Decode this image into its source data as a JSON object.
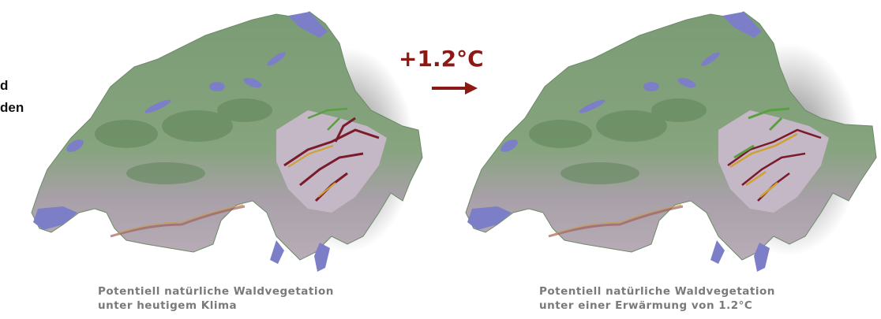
{
  "side_text": {
    "line1": "d",
    "line2": "den"
  },
  "left_map": {
    "caption_line1": "Potentiell natürliche Waldvegetation",
    "caption_line2": "unter heutigem Klima"
  },
  "right_map": {
    "caption_line1": "Potentiell natürliche Waldvegetation",
    "caption_line2": "unter einer Erwärmung von 1.2°C"
  },
  "warming": {
    "label": "+1.2°C",
    "icon": "arrow-right-icon"
  },
  "colors": {
    "lowland_forest": "#7fa07a",
    "alpine_gray": "#b8acb8",
    "lake_blue": "#7c7fc8",
    "high_alpine_red": "#7a1a2a",
    "treeline_green": "#5aa040",
    "accent_red": "#8b1a14"
  }
}
